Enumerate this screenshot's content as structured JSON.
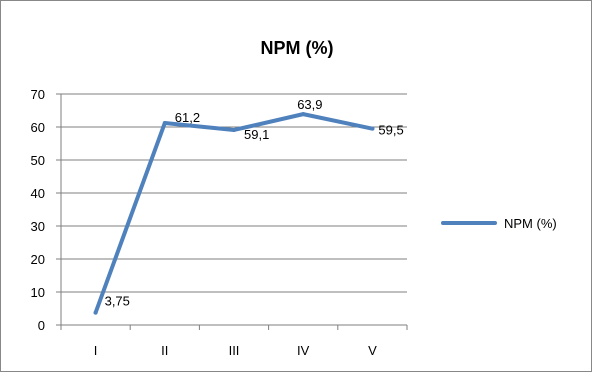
{
  "chart_data": {
    "type": "line",
    "title": "NPM (%)",
    "categories": [
      "I",
      "II",
      "III",
      "IV",
      "V"
    ],
    "series": [
      {
        "name": "NPM (%)",
        "values": [
          3.75,
          61.2,
          59.1,
          63.9,
          59.5
        ],
        "labels": [
          "3,75",
          "61,2",
          "59,1",
          "63,9",
          "59,5"
        ],
        "color": "#4F81BD"
      }
    ],
    "ylim": [
      0,
      70
    ],
    "yticks": [
      0,
      10,
      20,
      30,
      40,
      50,
      60,
      70
    ],
    "grid": true,
    "legend_position": "right"
  }
}
